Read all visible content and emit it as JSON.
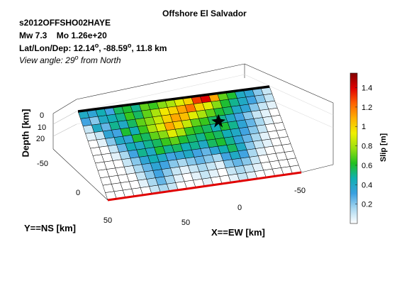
{
  "header": {
    "title": "Offshore El Salvador",
    "event_id": "s2012OFFSHO02HAYE",
    "mw_label": "Mw 7.3",
    "mo_label": "Mo 1.26e+20",
    "latlon_prefix": "Lat/Lon/Dep: 12.14",
    "lon_value": ", -88.59",
    "dep_value": ", 11.8 km",
    "view_prefix": "View angle:  29",
    "view_suffix": " from North",
    "degree_symbol": "o"
  },
  "axes": {
    "depth_label": "Depth [km]",
    "ns_label": "Y==NS [km]",
    "ew_label": "X==EW [km]",
    "depth_ticks": [
      "0",
      "10",
      "20"
    ],
    "ns_ticks": [
      "-50",
      "0",
      "50"
    ],
    "ew_ticks": [
      "-50",
      "0",
      "50"
    ]
  },
  "colorbar": {
    "label": "Slip [m]",
    "ticks": [
      "0.2",
      "0.4",
      "0.6",
      "0.8",
      "1",
      "1.2",
      "1.4"
    ],
    "tick_values": [
      0.2,
      0.4,
      0.6,
      0.8,
      1.0,
      1.2,
      1.4
    ],
    "min": 0,
    "max": 1.55,
    "colormap": [
      "#ffffff",
      "#a8d8f0",
      "#3aa0e0",
      "#0fb0b0",
      "#20c020",
      "#9be010",
      "#f0f000",
      "#ffb000",
      "#ff6000",
      "#e00000",
      "#800000"
    ]
  },
  "chart_data": {
    "type": "heatmap",
    "title": "Offshore El Salvador",
    "xlabel": "X==EW [km]",
    "ylabel": "Y==NS [km]",
    "zlabel": "Depth [km]",
    "colorbar_label": "Slip [m]",
    "clim": [
      0,
      1.55
    ],
    "grid_cols": 22,
    "grid_rows": 12,
    "slip_m": [
      [
        0.4,
        0.35,
        0.45,
        0.3,
        0.55,
        0.6,
        0.5,
        0.7,
        0.65,
        0.75,
        0.8,
        0.9,
        1.0,
        1.3,
        1.4,
        1.1,
        0.7,
        0.6,
        0.4,
        0.35,
        0.2,
        0.1
      ],
      [
        0.3,
        0.2,
        0.4,
        0.45,
        0.5,
        0.65,
        0.55,
        0.7,
        0.8,
        0.95,
        1.0,
        1.1,
        1.2,
        1.0,
        0.9,
        0.75,
        0.6,
        0.5,
        0.4,
        0.3,
        0.2,
        0.1
      ],
      [
        0.1,
        0.4,
        0.25,
        0.5,
        0.4,
        0.55,
        0.7,
        0.75,
        0.85,
        1.0,
        1.1,
        1.05,
        0.9,
        0.8,
        0.7,
        0.6,
        0.55,
        0.4,
        0.35,
        0.2,
        0.1,
        0.05
      ],
      [
        0.05,
        0.1,
        0.35,
        0.3,
        0.6,
        0.45,
        0.65,
        0.8,
        0.9,
        1.1,
        1.0,
        0.85,
        0.7,
        0.65,
        0.55,
        0.5,
        0.4,
        0.3,
        0.2,
        0.1,
        0.05,
        0.0
      ],
      [
        0.0,
        0.05,
        0.2,
        0.4,
        0.35,
        0.6,
        0.55,
        0.7,
        0.75,
        0.9,
        0.8,
        0.65,
        0.6,
        0.55,
        0.45,
        0.6,
        0.5,
        0.35,
        0.25,
        0.15,
        0.05,
        0.0
      ],
      [
        0.0,
        0.0,
        0.1,
        0.25,
        0.45,
        0.4,
        0.5,
        0.55,
        0.65,
        0.7,
        0.6,
        0.55,
        0.5,
        0.6,
        0.55,
        0.45,
        0.4,
        0.3,
        0.2,
        0.1,
        0.0,
        0.0
      ],
      [
        0.0,
        0.0,
        0.05,
        0.15,
        0.3,
        0.5,
        0.4,
        0.6,
        0.5,
        0.55,
        0.45,
        0.5,
        0.4,
        0.55,
        0.6,
        0.5,
        0.35,
        0.25,
        0.15,
        0.05,
        0.0,
        0.0
      ],
      [
        0.0,
        0.0,
        0.0,
        0.1,
        0.2,
        0.35,
        0.45,
        0.4,
        0.3,
        0.35,
        0.4,
        0.3,
        0.25,
        0.35,
        0.45,
        0.55,
        0.4,
        0.2,
        0.1,
        0.05,
        0.0,
        0.0
      ],
      [
        0.0,
        0.0,
        0.0,
        0.05,
        0.15,
        0.25,
        0.35,
        0.3,
        0.2,
        0.15,
        0.2,
        0.25,
        0.2,
        0.15,
        0.3,
        0.4,
        0.3,
        0.15,
        0.05,
        0.0,
        0.0,
        0.0
      ],
      [
        0.0,
        0.0,
        0.0,
        0.0,
        0.1,
        0.2,
        0.3,
        0.2,
        0.1,
        0.05,
        0.1,
        0.15,
        0.1,
        0.05,
        0.2,
        0.25,
        0.2,
        0.1,
        0.0,
        0.0,
        0.0,
        0.0
      ],
      [
        0.0,
        0.0,
        0.0,
        0.0,
        0.05,
        0.15,
        0.25,
        0.15,
        0.05,
        0.0,
        0.05,
        0.1,
        0.05,
        0.0,
        0.1,
        0.15,
        0.1,
        0.05,
        0.0,
        0.0,
        0.0,
        0.0
      ],
      [
        0.0,
        0.0,
        0.0,
        0.0,
        0.0,
        0.1,
        0.15,
        0.1,
        0.0,
        0.0,
        0.0,
        0.05,
        0.0,
        0.0,
        0.05,
        0.1,
        0.05,
        0.0,
        0.0,
        0.0,
        0.0,
        0.0
      ]
    ]
  }
}
